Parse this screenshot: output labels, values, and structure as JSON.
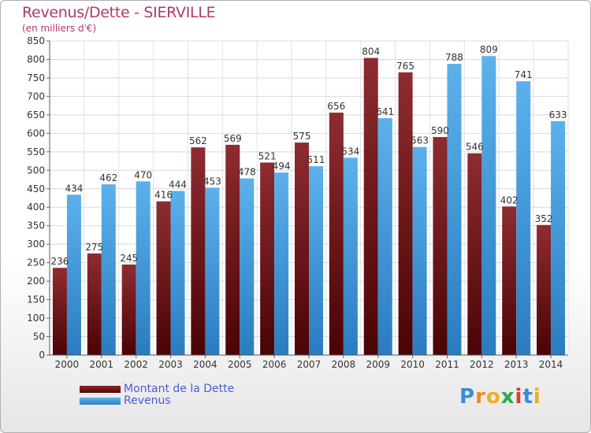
{
  "header": {
    "title": "Revenus/Dette - SIERVILLE",
    "subtitle": "(en milliers d'€)"
  },
  "legend": {
    "items": [
      {
        "label": "Montant de la Dette",
        "color": "#6b1418"
      },
      {
        "label": "Revenus",
        "color": "#4aa3e6"
      }
    ]
  },
  "logo": {
    "text": "Proxiti",
    "colors": [
      "#3a8bd6",
      "#f08a1e",
      "#e8b21a",
      "#2ea84a",
      "#e03a2a",
      "#3a8bd6",
      "#e8b21a"
    ]
  },
  "chart_data": {
    "type": "bar",
    "title": "Revenus/Dette - SIERVILLE",
    "subtitle": "(en milliers d'€)",
    "categories": [
      "2000",
      "2001",
      "2002",
      "2003",
      "2004",
      "2005",
      "2006",
      "2007",
      "2008",
      "2009",
      "2010",
      "2011",
      "2012",
      "2013",
      "2014"
    ],
    "series": [
      {
        "name": "Montant de la Dette",
        "values": [
          236,
          275,
          245,
          416,
          562,
          569,
          521,
          575,
          656,
          804,
          765,
          590,
          546,
          402,
          352
        ],
        "color": "#6b1418"
      },
      {
        "name": "Revenus",
        "values": [
          434,
          462,
          470,
          444,
          453,
          478,
          494,
          511,
          534,
          641,
          563,
          788,
          809,
          741,
          633
        ],
        "color": "#4aa3e6"
      }
    ],
    "ylim": [
      0,
      850
    ],
    "yticks": [
      0,
      50,
      100,
      150,
      200,
      250,
      300,
      350,
      400,
      450,
      500,
      550,
      600,
      650,
      700,
      750,
      800,
      850
    ],
    "grid": true,
    "legend_position": "bottom-left"
  }
}
